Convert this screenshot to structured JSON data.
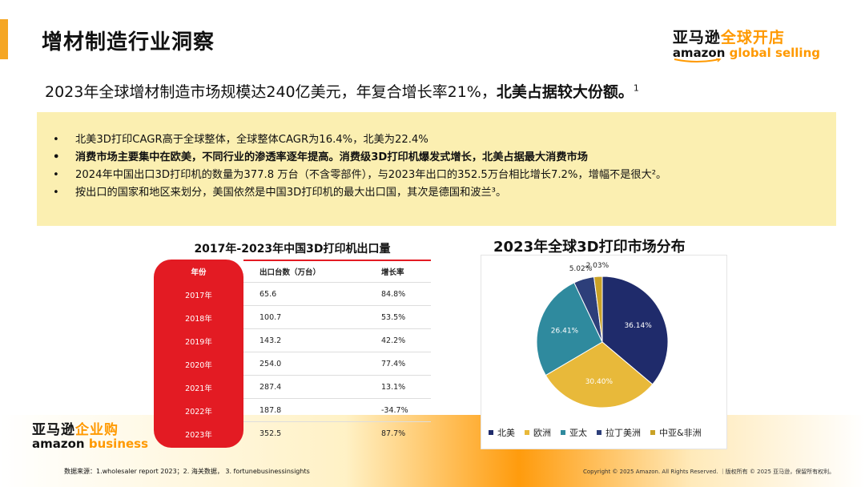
{
  "header": {
    "title": "增材制造行业洞察",
    "brand_cn_black": "亚马逊",
    "brand_cn_orange": "全球开店",
    "brand_en_black": "amazon",
    "brand_en_orange": "global selling"
  },
  "subtitle": {
    "text": "2023年全球增材制造市场规模达240亿美元，年复合增长率21%，",
    "bold": "北美占据较大份额。",
    "note": "1"
  },
  "bullets": [
    {
      "text": "北美3D打印CAGR高于全球整体，全球整体CAGR为16.4%，北美为22.4%",
      "bold": false
    },
    {
      "text": "消费市场主要集中在欧美，不同行业的渗透率逐年提高。消费级3D打印机爆发式增长，北美占据最大消费市场",
      "bold": true
    },
    {
      "text": "2024年中国出口3D打印机的数量为377.8 万台（不含零部件），与2023年出口的352.5万台相比增长7.2%，增幅不是很大²。",
      "bold": false
    },
    {
      "text": "按出口的国家和地区来划分，美国依然是中国3D打印机的最大出口国，其次是德国和波兰³。",
      "bold": false
    }
  ],
  "bullet_marker": "•",
  "table": {
    "title": "2017年-2023年中国3D打印机出口量",
    "headers": [
      "年份",
      "出口台数（万台）",
      "增长率"
    ],
    "rows": [
      [
        "2017年",
        "65.6",
        "84.8%"
      ],
      [
        "2018年",
        "100.7",
        "53.5%"
      ],
      [
        "2019年",
        "143.2",
        "42.2%"
      ],
      [
        "2020年",
        "254.0",
        "77.4%"
      ],
      [
        "2021年",
        "287.4",
        "13.1%"
      ],
      [
        "2022年",
        "187.8",
        "-34.7%"
      ],
      [
        "2023年",
        "352.5",
        "87.7%"
      ]
    ]
  },
  "chart_data": {
    "type": "pie",
    "title": "2023年全球3D打印市场分布",
    "categories": [
      "北美",
      "欧洲",
      "亚太",
      "拉丁美洲",
      "中亚&非洲"
    ],
    "values": [
      36.14,
      30.4,
      26.41,
      5.02,
      2.03
    ],
    "labels": [
      "36.14%",
      "30.40%",
      "26.41%",
      "5.02%",
      "2.03%"
    ],
    "colors": [
      "#1f2b6b",
      "#e8b93a",
      "#2f8a9e",
      "#2d3f7a",
      "#c9a227"
    ],
    "legend_position": "bottom"
  },
  "footer": {
    "biz_cn_black": "亚马逊",
    "biz_cn_orange": "企业购",
    "biz_en_black": "amazon",
    "biz_en_orange": "business",
    "source": "数据来源：1.wholesaler report 2023；2. 海关数据， 3. fortunebusinessinsights",
    "copyright": "Copyright © 2025 Amazon. All Rights Reserved. ｜版权所有 © 2025 亚马逊，保留所有权利。"
  },
  "colors": {
    "accent": "#f5a623",
    "amazon_orange": "#ff9900",
    "table_red": "#e31b23",
    "bullet_bg": "#fbefb1"
  }
}
